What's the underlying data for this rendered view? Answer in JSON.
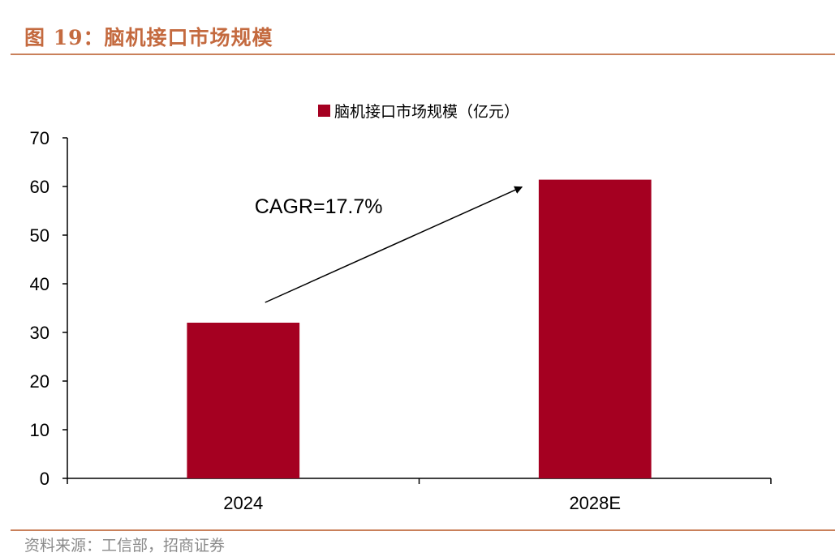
{
  "figure": {
    "title": "图 19：脑机接口市场规模",
    "source": "资料来源：工信部，招商证券"
  },
  "chart_data": {
    "type": "bar",
    "categories": [
      "2024",
      "2028E"
    ],
    "series": [
      {
        "name": "脑机接口市场规模（亿元）",
        "values": [
          32.0,
          61.4
        ]
      }
    ],
    "ylim": [
      0,
      70
    ],
    "yticks": [
      0,
      10,
      20,
      30,
      40,
      50,
      60,
      70
    ],
    "legend_position": "top-center",
    "grid": false,
    "bar_color": "#a50021",
    "annotation": {
      "text": "CAGR=17.7%"
    }
  }
}
